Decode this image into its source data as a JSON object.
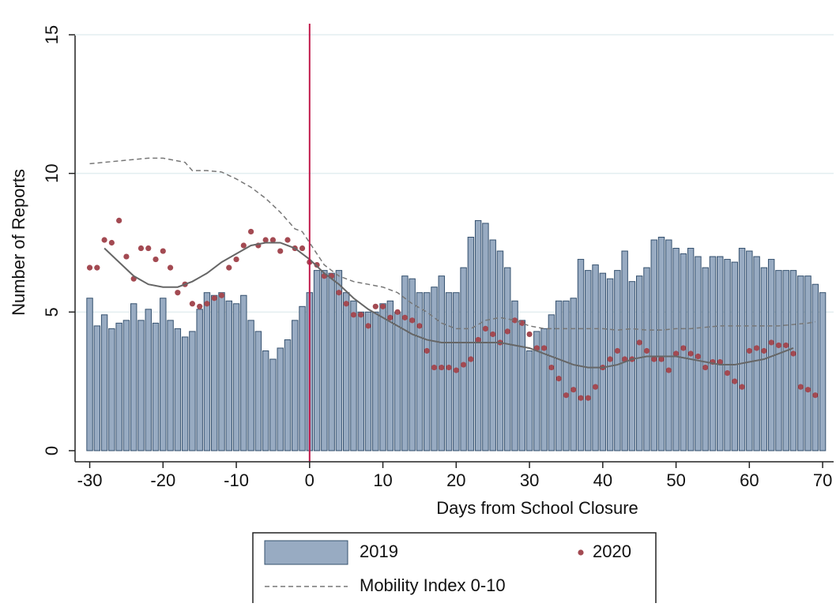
{
  "chart_data": {
    "type": "bar",
    "x_label": "Days from School Closure",
    "y_label": "Number of Reports",
    "xlim": [
      -32,
      71.5
    ],
    "xticks": [
      -30,
      -20,
      -10,
      0,
      10,
      20,
      30,
      40,
      50,
      60,
      70
    ],
    "ylim": [
      -0.4,
      15.4
    ],
    "yticks": [
      0,
      5,
      10,
      15
    ],
    "grid": true,
    "vline": 0,
    "vline_color": "#c0184a",
    "legend": "bottom",
    "series": [
      {
        "name": "2019",
        "type": "bar",
        "color": "#98abc2",
        "edge": "#34506e",
        "x": [
          -30,
          -29,
          -28,
          -27,
          -26,
          -25,
          -24,
          -23,
          -22,
          -21,
          -20,
          -19,
          -18,
          -17,
          -16,
          -15,
          -14,
          -13,
          -12,
          -11,
          -10,
          -9,
          -8,
          -7,
          -6,
          -5,
          -4,
          -3,
          -2,
          -1,
          0,
          1,
          2,
          3,
          4,
          5,
          6,
          7,
          8,
          9,
          10,
          11,
          12,
          13,
          14,
          15,
          16,
          17,
          18,
          19,
          20,
          21,
          22,
          23,
          24,
          25,
          26,
          27,
          28,
          29,
          30,
          31,
          32,
          33,
          34,
          35,
          36,
          37,
          38,
          39,
          40,
          41,
          42,
          43,
          44,
          45,
          46,
          47,
          48,
          49,
          50,
          51,
          52,
          53,
          54,
          55,
          56,
          57,
          58,
          59,
          60,
          61,
          62,
          63,
          64,
          65,
          66,
          67,
          68,
          69,
          70
        ],
        "values": [
          5.5,
          4.5,
          4.9,
          4.4,
          4.6,
          4.7,
          5.3,
          4.7,
          5.1,
          4.6,
          5.5,
          4.7,
          4.4,
          4.1,
          4.3,
          5.1,
          5.7,
          5.6,
          5.7,
          5.4,
          5.3,
          5.6,
          4.7,
          4.3,
          3.6,
          3.3,
          3.7,
          4.0,
          4.7,
          5.2,
          5.7,
          6.5,
          6.5,
          6.4,
          6.5,
          5.7,
          5.4,
          5.0,
          5.0,
          5.0,
          5.3,
          5.4,
          5.0,
          6.3,
          6.2,
          5.7,
          5.7,
          5.9,
          6.3,
          5.7,
          5.7,
          6.6,
          7.7,
          8.3,
          8.2,
          7.6,
          7.2,
          6.6,
          5.4,
          4.7,
          3.6,
          4.3,
          4.4,
          4.9,
          5.4,
          5.4,
          5.5,
          6.9,
          6.5,
          6.7,
          6.4,
          6.2,
          6.5,
          7.2,
          6.1,
          6.3,
          6.6,
          7.6,
          7.7,
          7.6,
          7.3,
          7.1,
          7.3,
          7.0,
          6.6,
          7.0,
          7.0,
          6.9,
          6.8,
          7.3,
          7.2,
          7.0,
          6.6,
          6.9,
          6.5,
          6.5,
          6.5,
          6.3,
          6.3,
          6.0,
          5.7
        ]
      },
      {
        "name": "2020",
        "type": "scatter",
        "color": "#a34a52",
        "x": [
          -30,
          -29,
          -28,
          -27,
          -26,
          -25,
          -24,
          -23,
          -22,
          -21,
          -20,
          -19,
          -18,
          -17,
          -16,
          -15,
          -14,
          -13,
          -12,
          -11,
          -10,
          -9,
          -8,
          -7,
          -6,
          -5,
          -4,
          -3,
          -2,
          -1,
          0,
          1,
          2,
          3,
          4,
          5,
          6,
          7,
          8,
          9,
          10,
          11,
          12,
          13,
          14,
          15,
          16,
          17,
          18,
          19,
          20,
          21,
          22,
          23,
          24,
          25,
          26,
          27,
          28,
          29,
          30,
          31,
          32,
          33,
          34,
          35,
          36,
          37,
          38,
          39,
          40,
          41,
          42,
          43,
          44,
          45,
          46,
          47,
          48,
          49,
          50,
          51,
          52,
          53,
          54,
          55,
          56,
          57,
          58,
          59,
          60,
          61,
          62,
          63,
          64,
          65,
          66,
          67,
          68,
          69
        ],
        "values": [
          6.6,
          6.6,
          7.6,
          7.5,
          8.3,
          7.0,
          6.2,
          7.3,
          7.3,
          6.9,
          7.2,
          6.6,
          5.7,
          6.0,
          5.3,
          5.2,
          5.3,
          5.5,
          5.6,
          6.6,
          6.9,
          7.4,
          7.9,
          7.4,
          7.6,
          7.6,
          7.2,
          7.6,
          7.3,
          7.3,
          6.8,
          6.7,
          6.3,
          6.3,
          5.7,
          5.3,
          4.9,
          4.9,
          4.5,
          5.2,
          5.2,
          4.8,
          5.0,
          4.8,
          4.7,
          4.5,
          3.6,
          3.0,
          3.0,
          3.0,
          2.9,
          3.1,
          3.3,
          4.0,
          4.4,
          4.2,
          3.9,
          4.3,
          4.7,
          4.6,
          4.2,
          3.7,
          3.7,
          3.0,
          2.6,
          2.0,
          2.2,
          1.9,
          1.9,
          2.3,
          3.0,
          3.3,
          3.6,
          3.3,
          3.3,
          3.9,
          3.6,
          3.3,
          3.3,
          2.9,
          3.5,
          3.7,
          3.5,
          3.4,
          3.0,
          3.2,
          3.2,
          2.8,
          2.5,
          2.3,
          3.6,
          3.7,
          3.6,
          3.9,
          3.8,
          3.8,
          3.5,
          2.3,
          2.2,
          2.0
        ]
      },
      {
        "type": "line",
        "color": "#666666",
        "x": [
          -28,
          -26,
          -24,
          -22,
          -20,
          -18,
          -16,
          -14,
          -12,
          -10,
          -8,
          -6,
          -4,
          -2,
          0,
          2,
          4,
          6,
          8,
          10,
          12,
          14,
          16,
          18,
          20,
          22,
          24,
          26,
          28,
          30,
          32,
          34,
          36,
          38,
          40,
          42,
          44,
          46,
          48,
          50,
          52,
          54,
          56,
          58,
          60,
          62,
          64,
          66
        ],
        "values": [
          7.3,
          6.8,
          6.3,
          6.0,
          5.9,
          5.9,
          6.1,
          6.4,
          6.8,
          7.1,
          7.4,
          7.5,
          7.5,
          7.3,
          6.9,
          6.4,
          6.0,
          5.5,
          5.1,
          4.8,
          4.5,
          4.2,
          4.0,
          3.9,
          3.9,
          3.9,
          3.9,
          3.9,
          3.8,
          3.7,
          3.5,
          3.3,
          3.1,
          3.0,
          3.0,
          3.1,
          3.3,
          3.4,
          3.4,
          3.4,
          3.3,
          3.2,
          3.1,
          3.1,
          3.2,
          3.3,
          3.5,
          3.7
        ]
      },
      {
        "name": "Mobility Index 0-10",
        "type": "line",
        "dashed": true,
        "color": "#777777",
        "x": [
          -30,
          -28,
          -26,
          -24,
          -22,
          -20,
          -18,
          -17,
          -16,
          -14,
          -12,
          -10,
          -8,
          -6,
          -4,
          -2,
          -1,
          0,
          2,
          4,
          6,
          8,
          10,
          12,
          14,
          16,
          18,
          20,
          22,
          24,
          26,
          28,
          30,
          32,
          34,
          36,
          38,
          40,
          42,
          44,
          46,
          48,
          50,
          52,
          54,
          56,
          58,
          60,
          62,
          64,
          66,
          68,
          69
        ],
        "values": [
          10.35,
          10.4,
          10.45,
          10.5,
          10.55,
          10.55,
          10.45,
          10.4,
          10.1,
          10.1,
          10.05,
          9.8,
          9.5,
          9.1,
          8.6,
          8.0,
          7.9,
          7.5,
          6.7,
          6.3,
          6.1,
          6.0,
          5.9,
          5.7,
          5.3,
          5.0,
          4.6,
          4.4,
          4.4,
          4.7,
          4.8,
          4.7,
          4.5,
          4.4,
          4.4,
          4.4,
          4.4,
          4.4,
          4.35,
          4.4,
          4.35,
          4.35,
          4.4,
          4.4,
          4.45,
          4.5,
          4.5,
          4.5,
          4.5,
          4.5,
          4.55,
          4.6,
          4.65
        ]
      }
    ]
  }
}
